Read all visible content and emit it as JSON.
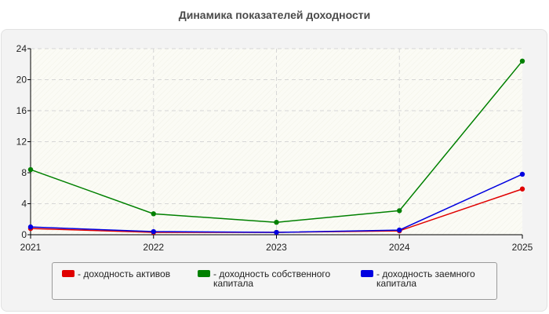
{
  "chart_data": {
    "type": "line",
    "title": "Динамика показателей доходности",
    "categories": [
      "2021",
      "2022",
      "2023",
      "2024",
      "2025"
    ],
    "ylim": [
      0,
      24
    ],
    "yticks": [
      0,
      4,
      8,
      12,
      16,
      20,
      24
    ],
    "grid": true,
    "legend_position": "bottom",
    "series": [
      {
        "name": "- доходность активов",
        "color": "#e00000",
        "values": [
          0.8,
          0.3,
          0.3,
          0.5,
          5.9
        ]
      },
      {
        "name": "- доходность собственного\nкапитала",
        "color": "#008000",
        "values": [
          8.4,
          2.7,
          1.6,
          3.1,
          22.4
        ]
      },
      {
        "name": "- доходность заемного\nкапитала",
        "color": "#0000e0",
        "values": [
          1.0,
          0.4,
          0.3,
          0.6,
          7.8
        ]
      }
    ]
  }
}
